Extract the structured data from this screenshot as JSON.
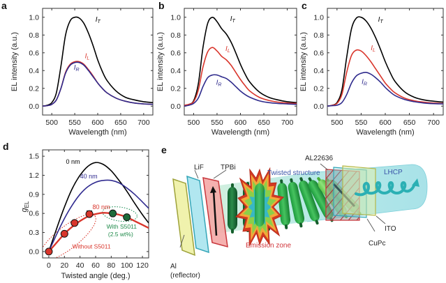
{
  "figure": {
    "panels": [
      "a",
      "b",
      "c",
      "d",
      "e"
    ]
  },
  "colors": {
    "IT": "#000000",
    "IL": "#d9352b",
    "IR": "#2e2a8c",
    "nm0": "#000000",
    "nm40": "#2f2a8f",
    "nm80": "#d9352b",
    "green": "#1f8a4a",
    "dotRed": "#d9352b",
    "dotGreen": "#1e6b3a"
  },
  "chart_data": [
    {
      "panel": "a",
      "type": "line",
      "xlabel": "Wavelength (nm)",
      "ylabel": "EL intensity (a.u.)",
      "xlim": [
        480,
        720
      ],
      "ylim": [
        -0.1,
        1.1
      ],
      "xticks": [
        500,
        550,
        600,
        650,
        700
      ],
      "yticks": [
        "0.0",
        "0.2",
        "0.4",
        "0.6",
        "0.8",
        "1.0"
      ],
      "x": [
        480,
        490,
        500,
        510,
        520,
        530,
        540,
        550,
        560,
        570,
        580,
        590,
        600,
        610,
        620,
        640,
        660,
        680,
        700,
        720
      ],
      "series": [
        {
          "name": "I_T",
          "label_main": "I",
          "label_sub": "T",
          "color_key": "IT",
          "values": [
            0.0,
            0.01,
            0.04,
            0.15,
            0.45,
            0.8,
            0.96,
            1.0,
            0.99,
            0.93,
            0.82,
            0.68,
            0.52,
            0.39,
            0.29,
            0.17,
            0.1,
            0.07,
            0.05,
            0.04
          ]
        },
        {
          "name": "I_L",
          "label_main": "I",
          "label_sub": "L",
          "color_key": "IL",
          "values": [
            0.0,
            0.005,
            0.02,
            0.07,
            0.2,
            0.38,
            0.47,
            0.5,
            0.5,
            0.47,
            0.41,
            0.34,
            0.26,
            0.2,
            0.15,
            0.09,
            0.055,
            0.035,
            0.025,
            0.02
          ]
        },
        {
          "name": "I_R",
          "label_main": "I",
          "label_sub": "R",
          "color_key": "IR",
          "values": [
            0.0,
            0.005,
            0.02,
            0.07,
            0.2,
            0.37,
            0.46,
            0.49,
            0.49,
            0.46,
            0.4,
            0.33,
            0.26,
            0.2,
            0.15,
            0.09,
            0.055,
            0.035,
            0.025,
            0.02
          ]
        }
      ]
    },
    {
      "panel": "b",
      "type": "line",
      "xlabel": "Wavelength (nm)",
      "ylabel": "EL intensity (a.u.)",
      "xlim": [
        480,
        720
      ],
      "ylim": [
        -0.1,
        1.1
      ],
      "xticks": [
        500,
        550,
        600,
        650,
        700
      ],
      "yticks": [
        "0.0",
        "0.2",
        "0.4",
        "0.6",
        "0.8",
        "1.0"
      ],
      "x": [
        480,
        490,
        500,
        510,
        520,
        530,
        540,
        550,
        560,
        570,
        580,
        590,
        600,
        610,
        620,
        640,
        660,
        680,
        700,
        720
      ],
      "series": [
        {
          "name": "I_T",
          "label_main": "I",
          "label_sub": "T",
          "color_key": "IT",
          "values": [
            0.01,
            0.02,
            0.06,
            0.25,
            0.66,
            0.93,
            1.0,
            0.95,
            0.87,
            0.81,
            0.72,
            0.6,
            0.47,
            0.36,
            0.27,
            0.16,
            0.1,
            0.07,
            0.05,
            0.04
          ]
        },
        {
          "name": "I_L",
          "label_main": "I",
          "label_sub": "L",
          "color_key": "IL",
          "values": [
            0.01,
            0.02,
            0.05,
            0.18,
            0.44,
            0.61,
            0.66,
            0.62,
            0.56,
            0.52,
            0.46,
            0.38,
            0.3,
            0.23,
            0.17,
            0.1,
            0.065,
            0.045,
            0.035,
            0.03
          ]
        },
        {
          "name": "I_R",
          "label_main": "I",
          "label_sub": "R",
          "color_key": "IR",
          "values": [
            0.0,
            0.01,
            0.03,
            0.09,
            0.22,
            0.32,
            0.35,
            0.35,
            0.33,
            0.31,
            0.27,
            0.22,
            0.17,
            0.13,
            0.1,
            0.06,
            0.04,
            0.03,
            0.025,
            0.02
          ]
        }
      ]
    },
    {
      "panel": "c",
      "type": "line",
      "xlabel": "Wavelength (nm)",
      "ylabel": "EL intensity (a.u.)",
      "xlim": [
        480,
        720
      ],
      "ylim": [
        -0.1,
        1.1
      ],
      "xticks": [
        500,
        550,
        600,
        650,
        700
      ],
      "yticks": [
        "0.0",
        "0.2",
        "0.4",
        "0.6",
        "0.8",
        "1.0"
      ],
      "x": [
        480,
        490,
        500,
        510,
        520,
        530,
        540,
        550,
        560,
        570,
        580,
        590,
        600,
        610,
        620,
        640,
        660,
        680,
        700,
        720
      ],
      "series": [
        {
          "name": "I_T",
          "label_main": "I",
          "label_sub": "T",
          "color_key": "IT",
          "values": [
            0.0,
            0.01,
            0.04,
            0.18,
            0.55,
            0.87,
            0.99,
            1.0,
            0.96,
            0.88,
            0.77,
            0.64,
            0.5,
            0.38,
            0.28,
            0.16,
            0.1,
            0.07,
            0.055,
            0.045
          ]
        },
        {
          "name": "I_L",
          "label_main": "I",
          "label_sub": "L",
          "color_key": "IL",
          "values": [
            0.0,
            0.01,
            0.03,
            0.13,
            0.38,
            0.57,
            0.63,
            0.62,
            0.57,
            0.5,
            0.42,
            0.34,
            0.26,
            0.2,
            0.15,
            0.09,
            0.06,
            0.045,
            0.035,
            0.03
          ]
        },
        {
          "name": "I_R",
          "label_main": "I",
          "label_sub": "R",
          "color_key": "IR",
          "values": [
            0.0,
            0.005,
            0.01,
            0.04,
            0.13,
            0.26,
            0.34,
            0.37,
            0.38,
            0.36,
            0.32,
            0.27,
            0.21,
            0.16,
            0.12,
            0.075,
            0.05,
            0.035,
            0.028,
            0.025
          ]
        }
      ]
    },
    {
      "panel": "d",
      "type": "line",
      "xlabel": "Twisted angle (deg.)",
      "ylabel": "g_EL",
      "ylabel_main": "g",
      "ylabel_sub": "EL",
      "xlim": [
        -8,
        128
      ],
      "ylim": [
        -0.1,
        1.6
      ],
      "xticks": [
        0,
        20,
        40,
        60,
        80,
        100,
        120
      ],
      "yticks": [
        "0.0",
        "0.3",
        "0.6",
        "0.9",
        "1.2",
        "1.5"
      ],
      "x": [
        0,
        10,
        20,
        30,
        40,
        50,
        60,
        70,
        80,
        90,
        100,
        110,
        120,
        128
      ],
      "series": [
        {
          "name": "0 nm",
          "color_key": "nm0",
          "values": [
            0.0,
            0.36,
            0.7,
            0.99,
            1.2,
            1.34,
            1.4,
            1.37,
            1.27,
            1.12,
            0.95,
            0.76,
            0.58,
            0.45
          ]
        },
        {
          "name": "40 nm",
          "color_key": "nm40",
          "values": [
            0.0,
            0.27,
            0.52,
            0.73,
            0.9,
            1.02,
            1.09,
            1.12,
            1.12,
            1.08,
            1.0,
            0.9,
            0.78,
            0.68
          ]
        },
        {
          "name": "80 nm",
          "color_key": "nm80",
          "values": [
            0.0,
            0.14,
            0.28,
            0.39,
            0.48,
            0.55,
            0.59,
            0.61,
            0.6,
            0.58,
            0.54,
            0.48,
            0.42,
            0.37
          ]
        }
      ],
      "points": [
        {
          "group": "Without S5011",
          "x": 0,
          "y": 0.0,
          "err": 0
        },
        {
          "group": "Without S5011",
          "x": 20,
          "y": 0.28,
          "err": 0
        },
        {
          "group": "Without S5011",
          "x": 33,
          "y": 0.45,
          "err": 0
        },
        {
          "group": "Without S5011",
          "x": 52,
          "y": 0.59,
          "err": 0.05
        },
        {
          "group": "With S5011 (2.5 wt%)",
          "x": 82,
          "y": 0.6,
          "err": 0
        },
        {
          "group": "With S5011 (2.5 wt%)",
          "x": 100,
          "y": 0.54,
          "err": 0
        }
      ],
      "annotations": {
        "nm0": "0 nm",
        "nm40": "40 nm",
        "nm80": "80 nm",
        "with_line1": "With S5011",
        "with_line2": "(2.5 wt%)",
        "without": "Without S5011"
      }
    }
  ],
  "diagram": {
    "labels": {
      "al": "Al",
      "reflector": "(reflector)",
      "lif": "LiF",
      "tpbi": "TPBi",
      "twisted": "Twisted structure",
      "emission": "Emission zone",
      "al22636": "AL22636",
      "lhcp": "LHCP",
      "ito": "ITO",
      "cupc": "CuPc"
    }
  }
}
